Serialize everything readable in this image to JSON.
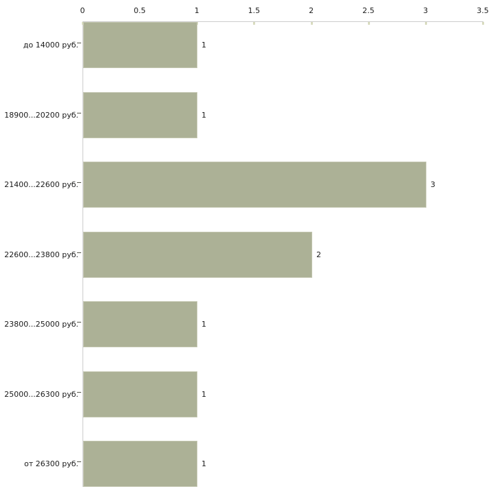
{
  "chart_data": {
    "type": "bar",
    "orientation": "horizontal",
    "title": "",
    "xlabel": "",
    "ylabel": "",
    "categories": [
      "до 14000 руб.",
      "18900...20200 руб.",
      "21400...22600 руб.",
      "22600...23800 руб.",
      "23800...25000 руб.",
      "25000...26300 руб.",
      "от 26300 руб."
    ],
    "values": [
      1,
      1,
      3,
      2,
      1,
      1,
      1
    ],
    "value_labels": [
      "1",
      "1",
      "3",
      "2",
      "1",
      "1",
      "1"
    ],
    "x_ticks": [
      0,
      0.5,
      1,
      1.5,
      2,
      2.5,
      3,
      3.5
    ],
    "x_tick_labels": [
      "0",
      "0.5",
      "1",
      "1.5",
      "2",
      "2.5",
      "3",
      "3.5"
    ],
    "xlim": [
      0,
      3.5
    ],
    "axis_position": "top",
    "grid": false,
    "legend": false,
    "colors": {
      "bar_fill": "#acb196",
      "bar_edge": "#c3c6b0",
      "axis_line": "#cccccc",
      "axis_tick": "#d9dcc0",
      "category_tick": "#55554a",
      "text": "#1a1a1a",
      "background": "#ffffff"
    }
  }
}
